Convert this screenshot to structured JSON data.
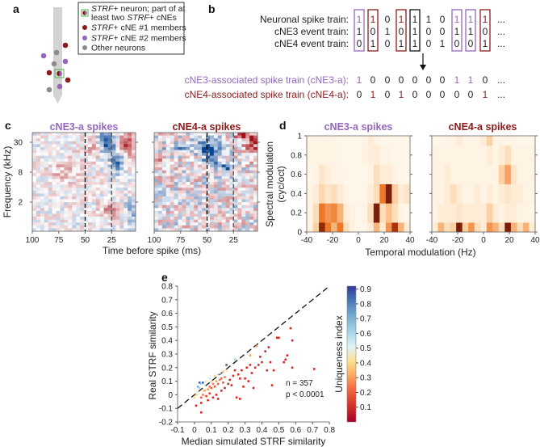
{
  "colors": {
    "purple": "#9467bd",
    "red": "#8b1a1a",
    "gray": "#8c8c8c",
    "green": "#4caf50"
  },
  "panel_labels": {
    "a": "a",
    "b": "b",
    "c": "c",
    "d": "d",
    "e": "e"
  },
  "panel_a": {
    "legend": [
      {
        "line1_italic": "STRF",
        "line1_rest": "+ neuron; part of at",
        "line2_pre": "least two ",
        "line2_italic": "STRF",
        "line2_rest": "+ cNEs"
      },
      {
        "italic": "STRF",
        "rest": "+ cNE #1 members"
      },
      {
        "italic": "STRF",
        "rest": "+ cNE #2 members"
      },
      {
        "text": "Other neurons"
      }
    ]
  },
  "panel_b": {
    "row_labels": [
      "Neuronal spike train:",
      "cNE3 event train:",
      "cNE4 event train:"
    ],
    "rows": [
      [
        "1",
        "1",
        "0",
        "1",
        "1",
        "1",
        "0",
        "1",
        "1",
        "1"
      ],
      [
        "1",
        "0",
        "1",
        "0",
        "1",
        "0",
        "0",
        "1",
        "1",
        "0"
      ],
      [
        "0",
        "1",
        "0",
        "1",
        "1",
        "0",
        "1",
        "0",
        "0",
        "1"
      ]
    ],
    "box_colors": [
      "purple",
      "red",
      "none",
      "red",
      "black",
      "none",
      "none",
      "purple",
      "purple",
      "red"
    ],
    "ellipsis": "...",
    "assoc_labels": [
      "cNE3-associated spike train (cNE3-a):",
      "cNE4-associated spike train (cNE4-a):"
    ],
    "assoc_rows": [
      [
        "1",
        "0",
        "0",
        "0",
        "0",
        "0",
        "0",
        "1",
        "1",
        "0"
      ],
      [
        "0",
        "1",
        "0",
        "1",
        "0",
        "0",
        "0",
        "0",
        "0",
        "1"
      ]
    ]
  },
  "chart_data": [
    {
      "type": "heatmap",
      "panel": "c",
      "titles": [
        "cNE3-a spikes",
        "cNE4-a spikes"
      ],
      "xlabel": "Time before spike (ms)",
      "ylabel": "Frequency (kHz)",
      "xticks": [
        "100",
        "75",
        "50",
        "25"
      ],
      "yticks": [
        "30",
        "8",
        "2"
      ],
      "dashed_lines_ms": [
        50,
        25
      ],
      "colormap": "blue-white-red"
    },
    {
      "type": "heatmap",
      "panel": "d",
      "titles": [
        "cNE3-a spikes",
        "cNE4-a spikes"
      ],
      "xlabel": "Temporal modulation (Hz)",
      "ylabel_line1": "Spectral modulation",
      "ylabel_line2": "(cyc/oct)",
      "xticks": [
        "-40",
        "-20",
        "0",
        "20",
        "40"
      ],
      "yticks": [
        "0",
        "0.2",
        "0.4",
        "0.6",
        "0.8",
        "1"
      ],
      "x": [
        -40,
        -35,
        -30,
        -25,
        -20,
        -15,
        -10,
        -5,
        0,
        5,
        10,
        15,
        20,
        25,
        30,
        35,
        40
      ],
      "y": [
        0,
        0.2,
        0.4,
        0.6,
        0.8,
        1
      ],
      "matrices": [
        [
          [
            0.05,
            0.3,
            0.9,
            0.6,
            0.4,
            0.6,
            0.2,
            0.05,
            0.03,
            0.03,
            0.1,
            0.4,
            0.1,
            0.5,
            0.85,
            0.4,
            0.1
          ],
          [
            0.05,
            0.2,
            0.6,
            0.5,
            0.55,
            0.4,
            0.1,
            0.05,
            0.03,
            0.05,
            0.2,
            0.95,
            0.2,
            0.35,
            0.2,
            0.05,
            0.03
          ],
          [
            0.05,
            0.1,
            0.25,
            0.15,
            0.2,
            0.1,
            0.05,
            0.03,
            0.03,
            0.03,
            0.1,
            0.2,
            0.6,
            0.95,
            0.3,
            0.1,
            0.15
          ],
          [
            0.03,
            0.05,
            0.15,
            0.08,
            0.05,
            0.05,
            0.03,
            0.03,
            0.03,
            0.03,
            0.05,
            0.2,
            0.1,
            0.1,
            0.05,
            0.03,
            0.03
          ],
          [
            0.05,
            0.05,
            0.05,
            0.05,
            0.05,
            0.03,
            0.03,
            0.03,
            0.03,
            0.05,
            0.08,
            0.1,
            0.05,
            0.05,
            0.03,
            0.03,
            0.03
          ],
          [
            0.05,
            0.05,
            0.05,
            0.05,
            0.05,
            0.03,
            0.03,
            0.03,
            0.03,
            0.05,
            0.1,
            0.05,
            0.03,
            0.03,
            0.03,
            0.03,
            0.03
          ]
        ],
        [
          [
            0.1,
            0.4,
            0.2,
            0.3,
            0.95,
            0.3,
            0.5,
            0.2,
            0.1,
            0.5,
            0.4,
            0.2,
            0.95,
            0.4,
            0.2,
            0.4,
            0.1
          ],
          [
            0.05,
            0.1,
            0.1,
            0.1,
            0.15,
            0.1,
            0.1,
            0.1,
            0.1,
            0.3,
            0.1,
            0.05,
            0.1,
            0.1,
            0.05,
            0.05,
            0.03
          ],
          [
            0.05,
            0.05,
            0.1,
            0.2,
            0.1,
            0.05,
            0.05,
            0.1,
            0.05,
            0.1,
            0.05,
            0.1,
            0.15,
            0.1,
            0.1,
            0.05,
            0.05
          ],
          [
            0.05,
            0.05,
            0.1,
            0.05,
            0.05,
            0.05,
            0.05,
            0.05,
            0.05,
            0.05,
            0.05,
            0.3,
            0.45,
            0.15,
            0.05,
            0.05,
            0.05
          ],
          [
            0.05,
            0.05,
            0.05,
            0.05,
            0.05,
            0.05,
            0.05,
            0.05,
            0.05,
            0.1,
            0.05,
            0.1,
            0.2,
            0.05,
            0.05,
            0.05,
            0.05
          ],
          [
            0.03,
            0.03,
            0.05,
            0.05,
            0.1,
            0.05,
            0.05,
            0.05,
            0.1,
            0.3,
            0.05,
            0.05,
            0.05,
            0.05,
            0.03,
            0.03,
            0.03
          ]
        ]
      ]
    },
    {
      "type": "scatter",
      "panel": "e",
      "xlabel": "Median simulated STRF similarity",
      "ylabel": "Real STRF similarity",
      "xlim": [
        -0.1,
        0.8
      ],
      "ylim": [
        -0.2,
        0.8
      ],
      "xticks": [
        "-0.1",
        "0",
        "0.1",
        "0.2",
        "0.3",
        "0.4",
        "0.5",
        "0.6",
        "0.7",
        "0.8"
      ],
      "yticks": [
        "-0.2",
        "-0.1",
        "0",
        "0.1",
        "0.2",
        "0.3",
        "0.4",
        "0.5",
        "0.6",
        "0.7",
        "0.8"
      ],
      "identity_line": true,
      "annotation": [
        "n = 357",
        "p < 0.0001"
      ],
      "colorbar": {
        "label": "Uniqueness index",
        "ticks": [
          "0.1",
          "0.2",
          "0.3",
          "0.4",
          "0.5",
          "0.6",
          "0.7",
          "0.8",
          "0.9"
        ],
        "range": [
          0,
          0.92
        ]
      },
      "points_xyu": [
        [
          0.0,
          -0.02,
          0.4
        ],
        [
          0.01,
          0.0,
          0.35
        ],
        [
          0.02,
          0.02,
          0.45
        ],
        [
          0.03,
          0.05,
          0.6
        ],
        [
          0.02,
          0.06,
          0.7
        ],
        [
          0.03,
          0.09,
          0.85
        ],
        [
          0.05,
          0.09,
          0.85
        ],
        [
          0.04,
          0.08,
          0.6
        ],
        [
          0.06,
          0.07,
          0.5
        ],
        [
          0.07,
          0.1,
          0.45
        ],
        [
          0.09,
          0.12,
          0.55
        ],
        [
          0.1,
          0.1,
          0.4
        ],
        [
          0.12,
          0.14,
          0.4
        ],
        [
          0.14,
          0.15,
          0.6
        ],
        [
          0.15,
          0.16,
          0.5
        ],
        [
          0.17,
          0.17,
          0.35
        ],
        [
          0.19,
          0.18,
          0.4
        ],
        [
          0.19,
          0.22,
          0.85
        ],
        [
          0.24,
          0.26,
          0.6
        ],
        [
          0.37,
          0.36,
          0.3
        ],
        [
          0.33,
          0.29,
          0.3
        ],
        [
          0.05,
          0.0,
          0.25
        ],
        [
          0.06,
          0.03,
          0.3
        ],
        [
          0.08,
          0.04,
          0.3
        ],
        [
          0.09,
          0.06,
          0.25
        ],
        [
          0.1,
          0.05,
          0.2
        ],
        [
          0.11,
          0.08,
          0.25
        ],
        [
          0.12,
          0.06,
          0.2
        ],
        [
          0.13,
          0.1,
          0.3
        ],
        [
          0.14,
          0.08,
          0.2
        ],
        [
          0.15,
          0.11,
          0.25
        ],
        [
          0.16,
          0.12,
          0.2
        ],
        [
          0.17,
          0.09,
          0.2
        ],
        [
          0.18,
          0.13,
          0.25
        ],
        [
          0.04,
          -0.02,
          0.2
        ],
        [
          0.07,
          -0.01,
          0.15
        ],
        [
          0.09,
          0.01,
          0.15
        ],
        [
          0.01,
          -0.08,
          0.1
        ],
        [
          0.04,
          -0.13,
          0.1
        ],
        [
          0.04,
          -0.06,
          0.1
        ],
        [
          0.08,
          -0.04,
          0.1
        ],
        [
          0.11,
          -0.02,
          0.1
        ],
        [
          0.13,
          0.0,
          0.1
        ],
        [
          0.14,
          -0.03,
          0.1
        ],
        [
          0.16,
          0.03,
          0.1
        ],
        [
          0.18,
          0.05,
          0.1
        ],
        [
          0.2,
          0.08,
          0.1
        ],
        [
          0.21,
          0.11,
          0.1
        ],
        [
          0.22,
          0.07,
          0.1
        ],
        [
          0.23,
          0.14,
          0.1
        ],
        [
          0.24,
          0.18,
          0.1
        ],
        [
          0.25,
          -0.02,
          0.1
        ],
        [
          0.26,
          0.15,
          0.1
        ],
        [
          0.27,
          0.12,
          0.1
        ],
        [
          0.27,
          -0.03,
          0.1
        ],
        [
          0.28,
          0.18,
          0.1
        ],
        [
          0.29,
          0.06,
          0.1
        ],
        [
          0.3,
          0.12,
          0.1
        ],
        [
          0.31,
          0.2,
          0.1
        ],
        [
          0.32,
          0.1,
          0.1
        ],
        [
          0.33,
          0.22,
          0.1
        ],
        [
          0.34,
          0.16,
          0.1
        ],
        [
          0.35,
          0.05,
          0.1
        ],
        [
          0.36,
          0.2,
          0.1
        ],
        [
          0.38,
          0.22,
          0.1
        ],
        [
          0.39,
          0.28,
          0.1
        ],
        [
          0.4,
          0.24,
          0.1
        ],
        [
          0.42,
          0.32,
          0.1
        ],
        [
          0.43,
          0.18,
          0.1
        ],
        [
          0.44,
          0.35,
          0.1
        ],
        [
          0.45,
          0.24,
          0.1
        ],
        [
          0.46,
          0.07,
          0.1
        ],
        [
          0.47,
          0.18,
          0.1
        ],
        [
          0.49,
          0.42,
          0.1
        ],
        [
          0.5,
          0.42,
          0.1
        ],
        [
          0.53,
          0.24,
          0.1
        ],
        [
          0.54,
          0.26,
          0.1
        ],
        [
          0.55,
          0.29,
          0.1
        ],
        [
          0.57,
          0.49,
          0.1
        ],
        [
          0.58,
          0.4,
          0.1
        ],
        [
          0.58,
          0.2,
          0.1
        ],
        [
          0.71,
          0.19,
          0.1
        ]
      ]
    }
  ]
}
